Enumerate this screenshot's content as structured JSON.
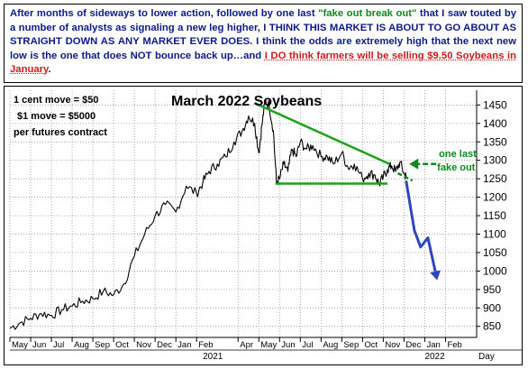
{
  "headline": {
    "p1": "After months of sideways to lower action, followed by one last ",
    "p2": "\"fake out break out\"",
    "p3": " that I saw touted by a number of analysts as signaling a new leg higher, I THINK THIS MARKET IS ABOUT TO GO ABOUT AS STRAIGHT DOWN AS ANY MARKET EVER DOES. I think the odds are extremely high that the next new low is the one that does NOT bounce back up…and ",
    "p4": "I DO think farmers will be selling $9.50 Soybeans in January",
    "p5": "."
  },
  "chart_data": {
    "type": "line",
    "title": "March 2022 Soybeans",
    "notes": [
      "1 cent move = $50",
      "$1 move = $5000",
      "per futures contract"
    ],
    "annotation": "one last fake out",
    "y_ticks": [
      850,
      900,
      950,
      1000,
      1050,
      1100,
      1150,
      1200,
      1250,
      1300,
      1350,
      1400,
      1450
    ],
    "ylim": [
      820,
      1490
    ],
    "months": [
      "May",
      "Jun",
      "Jul",
      "Aug",
      "Sep",
      "Oct",
      "Nov",
      "Dec",
      "Jan",
      "Feb",
      "Apr",
      "May",
      "Jun",
      "Jul",
      "Aug",
      "Sep",
      "Oct",
      "Nov",
      "Dec",
      "Jan",
      "Feb"
    ],
    "month_x": [
      0,
      1,
      2,
      3,
      4,
      5,
      6,
      7,
      8,
      9,
      11,
      12,
      13,
      14,
      15,
      16,
      17,
      18,
      19,
      20,
      21
    ],
    "x_end": 22.5,
    "year_labels": [
      {
        "label": "2021",
        "x": 9.3
      },
      {
        "label": "2022",
        "x": 20
      }
    ],
    "x_axis_label": "Day",
    "series": [
      {
        "x": [
          0,
          0.5,
          1,
          1.5,
          2,
          2.5,
          3,
          3.5,
          4,
          4.5,
          5,
          5.5,
          6,
          6.5,
          7,
          7.5,
          8,
          8.5,
          9,
          9.3,
          9.6,
          10,
          10.4,
          10.8,
          11.2,
          11.5,
          11.8,
          12,
          12.15,
          12.3,
          12.5,
          12.7,
          12.85,
          13,
          13.2,
          13.4,
          13.6,
          13.8,
          14,
          14.3,
          14.6,
          15,
          15.3,
          15.6,
          16,
          16.3,
          16.6,
          17,
          17.3,
          17.6,
          17.8,
          18,
          18.2,
          18.4,
          18.6,
          18.8,
          19,
          19.1
        ],
        "values": [
          845,
          860,
          872,
          885,
          880,
          895,
          905,
          918,
          925,
          945,
          935,
          965,
          1040,
          1100,
          1150,
          1180,
          1160,
          1230,
          1210,
          1240,
          1270,
          1290,
          1310,
          1350,
          1380,
          1420,
          1400,
          1320,
          1395,
          1460,
          1450,
          1380,
          1240,
          1250,
          1290,
          1270,
          1330,
          1310,
          1350,
          1330,
          1340,
          1310,
          1310,
          1290,
          1320,
          1280,
          1290,
          1250,
          1265,
          1260,
          1235,
          1255,
          1275,
          1285,
          1270,
          1295,
          1265,
          1255
        ]
      }
    ],
    "projection": {
      "x": [
        19.1,
        19.5,
        19.8,
        20.15,
        20.6
      ],
      "values": [
        1245,
        1110,
        1065,
        1090,
        975
      ]
    },
    "trendline": {
      "x": [
        11.8,
        18.3
      ],
      "values": [
        1455,
        1290
      ]
    },
    "support": {
      "x": [
        12.8,
        18.2
      ],
      "values": [
        1237,
        1237
      ]
    },
    "colors": {
      "price": "#000000",
      "trend": "#1aa31a",
      "projection": "#2c47bd",
      "annotation": "#0b8a1d",
      "title": "#000000"
    }
  }
}
